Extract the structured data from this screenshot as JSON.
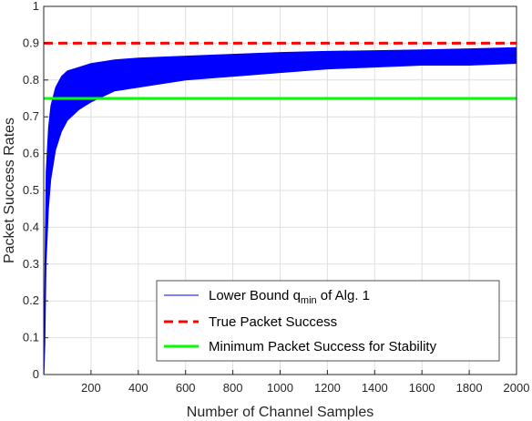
{
  "chart_data": {
    "type": "line",
    "xlabel": "Number of Channel Samples",
    "ylabel": "Packet Success Rates",
    "xlim": [
      0,
      2000
    ],
    "ylim": [
      0,
      1
    ],
    "xticks": [
      200,
      400,
      600,
      800,
      1000,
      1200,
      1400,
      1600,
      1800,
      2000
    ],
    "yticks": [
      0,
      0.1,
      0.2,
      0.3,
      0.4,
      0.5,
      0.6,
      0.7,
      0.8,
      0.9,
      1
    ],
    "grid": true,
    "legend_position": "bottom-right",
    "series": [
      {
        "name": "Lower Bound q_min of Alg. 1",
        "legend_main": "Lower Bound q",
        "legend_sub": "min",
        "legend_tail": " of Alg. 1",
        "style": "band",
        "color": "#0000ff",
        "x": [
          1,
          5,
          10,
          20,
          30,
          50,
          75,
          100,
          150,
          200,
          300,
          400,
          600,
          800,
          1000,
          1200,
          1400,
          1600,
          1800,
          2000
        ],
        "lower": [
          0.0,
          0.08,
          0.3,
          0.45,
          0.53,
          0.61,
          0.66,
          0.69,
          0.72,
          0.74,
          0.77,
          0.78,
          0.8,
          0.81,
          0.82,
          0.83,
          0.835,
          0.84,
          0.84,
          0.845
        ],
        "upper": [
          0.05,
          0.3,
          0.55,
          0.67,
          0.73,
          0.78,
          0.81,
          0.825,
          0.835,
          0.845,
          0.855,
          0.86,
          0.865,
          0.87,
          0.875,
          0.878,
          0.88,
          0.882,
          0.885,
          0.888
        ]
      },
      {
        "name": "True Packet Success",
        "style": "dashed",
        "color": "#ff0000",
        "x": [
          0,
          2000
        ],
        "values": [
          0.9,
          0.9
        ]
      },
      {
        "name": "Minimum Packet Success for Stability",
        "style": "solid",
        "color": "#00ff00",
        "x": [
          0,
          2000
        ],
        "values": [
          0.75,
          0.75
        ]
      }
    ]
  }
}
